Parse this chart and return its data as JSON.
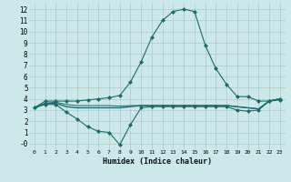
{
  "xlabel": "Humidex (Indice chaleur)",
  "ylabel": "",
  "xlim": [
    -0.5,
    23.5
  ],
  "ylim": [
    -0.5,
    12.5
  ],
  "xticks": [
    0,
    1,
    2,
    3,
    4,
    5,
    6,
    7,
    8,
    9,
    10,
    11,
    12,
    13,
    14,
    15,
    16,
    17,
    18,
    19,
    20,
    21,
    22,
    23
  ],
  "yticks": [
    0,
    1,
    2,
    3,
    4,
    5,
    6,
    7,
    8,
    9,
    10,
    11,
    12
  ],
  "ytick_labels": [
    "-0",
    "1",
    "2",
    "3",
    "4",
    "5",
    "6",
    "7",
    "8",
    "9",
    "10",
    "11",
    "12"
  ],
  "bg_color": "#cce8e8",
  "grid_color": "#aacccc",
  "line_color": "#1a6b6b",
  "lines": [
    {
      "x": [
        0,
        1,
        2,
        3,
        4,
        5,
        6,
        7,
        8,
        9,
        10,
        11,
        12,
        13,
        14,
        15,
        16,
        17,
        18,
        19,
        20,
        21,
        22,
        23
      ],
      "y": [
        3.2,
        3.8,
        3.8,
        3.8,
        3.8,
        3.9,
        4.0,
        4.1,
        4.3,
        5.5,
        7.3,
        9.5,
        11.0,
        11.8,
        12.0,
        11.8,
        8.8,
        6.7,
        5.3,
        4.2,
        4.2,
        3.8,
        3.8,
        3.9
      ],
      "marker": "D",
      "markersize": 2.0,
      "linewidth": 0.8
    },
    {
      "x": [
        0,
        1,
        2,
        3,
        4,
        5,
        6,
        7,
        8,
        9,
        10,
        11,
        12,
        13,
        14,
        15,
        16,
        17,
        18,
        19,
        20,
        21,
        22,
        23
      ],
      "y": [
        3.2,
        3.5,
        3.5,
        2.8,
        2.2,
        1.5,
        1.1,
        1.0,
        -0.1,
        1.7,
        3.2,
        3.3,
        3.3,
        3.3,
        3.3,
        3.3,
        3.3,
        3.3,
        3.3,
        3.0,
        2.9,
        3.0,
        3.8,
        4.0
      ],
      "marker": "D",
      "markersize": 2.0,
      "linewidth": 0.8
    },
    {
      "x": [
        0,
        1,
        2,
        3,
        4,
        5,
        6,
        7,
        8,
        9,
        10,
        11,
        12,
        13,
        14,
        15,
        16,
        17,
        18,
        19,
        20,
        21,
        22,
        23
      ],
      "y": [
        3.2,
        3.6,
        3.6,
        3.3,
        3.2,
        3.2,
        3.2,
        3.2,
        3.2,
        3.3,
        3.4,
        3.4,
        3.4,
        3.4,
        3.4,
        3.4,
        3.4,
        3.4,
        3.4,
        3.3,
        3.2,
        3.1,
        3.8,
        4.0
      ],
      "marker": null,
      "markersize": 0,
      "linewidth": 1.0
    },
    {
      "x": [
        0,
        1,
        2,
        3,
        4,
        5,
        6,
        7,
        8,
        9,
        10,
        11,
        12,
        13,
        14,
        15,
        16,
        17,
        18,
        19,
        20,
        21,
        22,
        23
      ],
      "y": [
        3.2,
        3.6,
        3.7,
        3.5,
        3.4,
        3.4,
        3.4,
        3.4,
        3.35,
        3.4,
        3.4,
        3.4,
        3.4,
        3.4,
        3.4,
        3.4,
        3.4,
        3.4,
        3.4,
        3.3,
        3.2,
        3.1,
        3.8,
        4.0
      ],
      "marker": null,
      "markersize": 0,
      "linewidth": 0.7
    }
  ]
}
